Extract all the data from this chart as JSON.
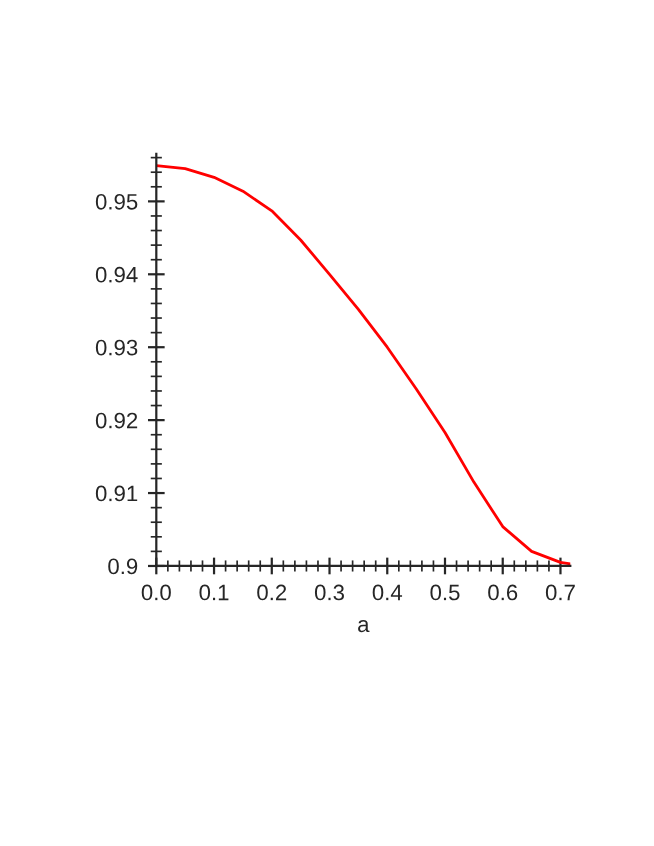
{
  "chart_data": {
    "type": "line",
    "xlabel": "a",
    "series": [
      {
        "color": "#ff0000",
        "x": [
          0,
          0.05,
          0.1,
          0.15,
          0.2,
          0.25,
          0.3,
          0.35,
          0.4,
          0.45,
          0.5,
          0.55,
          0.6,
          0.65,
          0.7,
          0.717
        ],
        "values": [
          0.9549,
          0.9545,
          0.9533,
          0.9514,
          0.9487,
          0.9447,
          0.94,
          0.9352,
          0.93,
          0.9243,
          0.9183,
          0.9115,
          0.9054,
          0.902,
          0.9005,
          0.9003
        ]
      }
    ],
    "xlim": [
      0,
      0.717
    ],
    "ylim": [
      0.9,
      0.9565
    ],
    "xticks": [
      {
        "value": 0.0,
        "label": "0.0"
      },
      0.1,
      0.2,
      0.3,
      0.4,
      0.5,
      0.6,
      0.7,
      {
        "value": 0.02,
        "label": null
      },
      {
        "value": 0.04,
        "label": null
      },
      {
        "value": 0.06,
        "label": null
      },
      {
        "value": 0.08,
        "label": null
      },
      {
        "value": 0.12,
        "label": null
      },
      {
        "value": 0.14,
        "label": null
      },
      {
        "value": 0.16,
        "label": null
      },
      {
        "value": 0.18,
        "label": null
      },
      {
        "value": 0.22,
        "label": null
      },
      {
        "value": 0.24,
        "label": null
      },
      {
        "value": 0.26,
        "label": null
      },
      {
        "value": 0.28,
        "label": null
      },
      {
        "value": 0.32,
        "label": null
      },
      {
        "value": 0.34,
        "label": null
      },
      {
        "value": 0.36,
        "label": null
      },
      {
        "value": 0.38,
        "label": null
      },
      {
        "value": 0.42,
        "label": null
      },
      {
        "value": 0.44,
        "label": null
      },
      {
        "value": 0.46,
        "label": null
      },
      {
        "value": 0.48,
        "label": null
      },
      {
        "value": 0.52,
        "label": null
      },
      {
        "value": 0.54,
        "label": null
      },
      {
        "value": 0.56,
        "label": null
      },
      {
        "value": 0.58,
        "label": null
      },
      {
        "value": 0.62,
        "label": null
      },
      {
        "value": 0.64,
        "label": null
      },
      {
        "value": 0.66,
        "label": null
      },
      {
        "value": 0.68,
        "label": null
      }
    ],
    "yticks": [
      0.9,
      0.91,
      0.92,
      0.93,
      0.94,
      0.95,
      {
        "value": 0.902,
        "label": null
      },
      {
        "value": 0.904,
        "label": null
      },
      {
        "value": 0.906,
        "label": null
      },
      {
        "value": 0.908,
        "label": null
      },
      {
        "value": 0.912,
        "label": null
      },
      {
        "value": 0.914,
        "label": null
      },
      {
        "value": 0.916,
        "label": null
      },
      {
        "value": 0.918,
        "label": null
      },
      {
        "value": 0.922,
        "label": null
      },
      {
        "value": 0.924,
        "label": null
      },
      {
        "value": 0.926,
        "label": null
      },
      {
        "value": 0.928,
        "label": null
      },
      {
        "value": 0.932,
        "label": null
      },
      {
        "value": 0.934,
        "label": null
      },
      {
        "value": 0.936,
        "label": null
      },
      {
        "value": 0.938,
        "label": null
      },
      {
        "value": 0.942,
        "label": null
      },
      {
        "value": 0.944,
        "label": null
      },
      {
        "value": 0.946,
        "label": null
      },
      {
        "value": 0.948,
        "label": null
      },
      {
        "value": 0.952,
        "label": null
      },
      {
        "value": 0.954,
        "label": null
      },
      {
        "value": 0.956,
        "label": null
      }
    ],
    "marker": "none",
    "line_style": "solid"
  }
}
